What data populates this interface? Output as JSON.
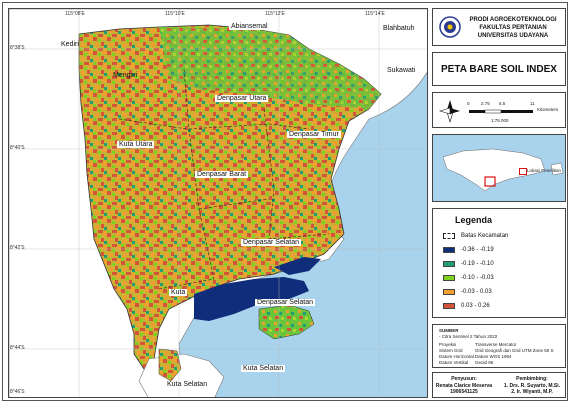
{
  "coords": {
    "top": [
      "115°08'E",
      "115°10'E",
      "115°12'E",
      "115°14'E"
    ],
    "left": [
      "8°38'S",
      "8°40'S",
      "8°42'S",
      "8°44'S",
      "8°46'S"
    ]
  },
  "places": {
    "kediri": "Kediri",
    "abiansemal": "Abiansemal",
    "blahbatuh": "Blahbatuh",
    "mengwi": "Mengwi",
    "sukawati": "Sukawati",
    "denpasar_utara": "Denpasar Utara",
    "denpasar_timur": "Denpasar Timur",
    "kuta_utara": "Kuta Utara",
    "denpasar_barat": "Denpasar Barat",
    "denpasar_selatan_1": "Denpasar Selatan",
    "kuta": "Kuta",
    "denpasar_selatan_2": "Denpasar Selatan",
    "kuta_selatan_1": "Kuta Selatan",
    "kuta_selatan_2": "Kuta Selatan"
  },
  "header": {
    "line1": "PRODI AGROEKOTEKNOLOGI",
    "line2": "FAKULTAS PERTANIAN",
    "line3": "UNIVERSITAS UDAYANA"
  },
  "title": "PETA BARE SOIL INDEX",
  "scale": {
    "ticks": [
      "0",
      "2.75",
      "5.5",
      "11"
    ],
    "unit": "Kilometers",
    "ratio": "1:78.000"
  },
  "inset": {
    "label": "Lokasi Penelitian"
  },
  "legend": {
    "title": "Legenda",
    "boundary": "Batas Kecamatan",
    "classes": [
      {
        "label": "-0.36 - -0.19",
        "color": "#0f2d7a"
      },
      {
        "label": "-0.19 - -0.10",
        "color": "#1f9e78"
      },
      {
        "label": "-0.10 - -0.03",
        "color": "#7ed321"
      },
      {
        "label": "-0.03 - 0.03",
        "color": "#f0a030"
      },
      {
        "label": "0.03 - 0.26",
        "color": "#d4553a"
      }
    ]
  },
  "source": {
    "head": "SUMBER",
    "line": "- Citra Sentinel 2 Tahun 2022",
    "rows": [
      {
        "k": "Proyeksi",
        "v": "Transverse Mercator"
      },
      {
        "k": "Sistem Grid",
        "v": "Grid Geografi dan Grid UTM Zone 50 S"
      },
      {
        "k": "Datum Horizontal",
        "v": "Datum WGS 1984"
      },
      {
        "k": "Datum Vertikal",
        "v": "Geoid 96"
      }
    ]
  },
  "author": {
    "head": "Penyusun:",
    "name": "Renata Clarice Meserva",
    "nim": "1906541125"
  },
  "advisor": {
    "head": "Pembimbing:",
    "one": "1. Drs. R. Suyarto, M.Si.",
    "two": "2. Ir. Wiyanti, M.P."
  }
}
